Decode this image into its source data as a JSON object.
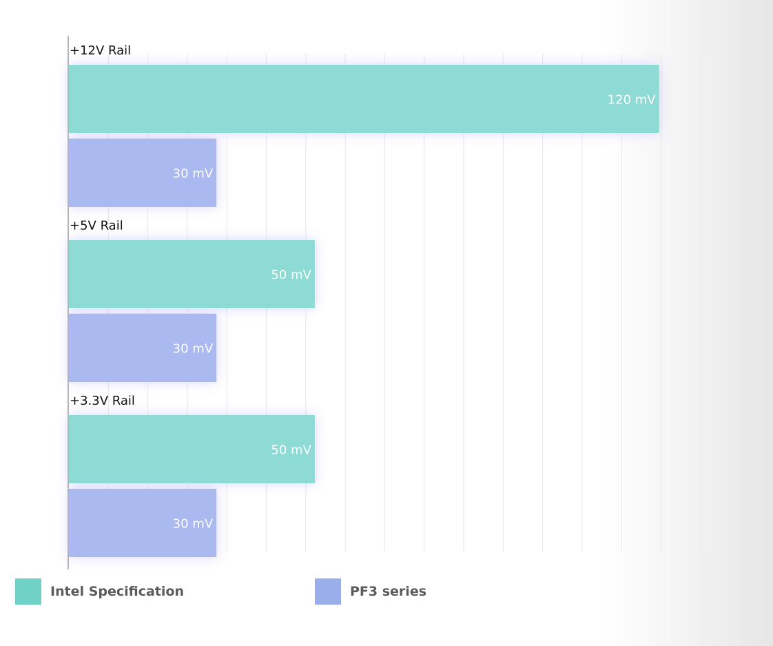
{
  "chart_data": {
    "type": "bar",
    "orientation": "horizontal",
    "categories": [
      "+12V Rail",
      "+5V Rail",
      "+3.3V Rail"
    ],
    "series": [
      {
        "name": "Intel Specification",
        "values": [
          120,
          50,
          50
        ],
        "labels": [
          "120 mV",
          "50 mV",
          "50 mV"
        ],
        "color": "#8ddbd4"
      },
      {
        "name": "PF3 series",
        "values": [
          30,
          30,
          30
        ],
        "labels": [
          "30 mV",
          "30 mV",
          "30 mV"
        ],
        "color": "#aab9ef"
      }
    ],
    "unit": "mV",
    "xlim": [
      0,
      130
    ],
    "grid": true,
    "legend_position": "bottom-left"
  },
  "legend": {
    "items": [
      {
        "label": "Intel Specification",
        "color": "#70d1c6"
      },
      {
        "label": "PF3 series",
        "color": "#9aaeec"
      }
    ]
  }
}
